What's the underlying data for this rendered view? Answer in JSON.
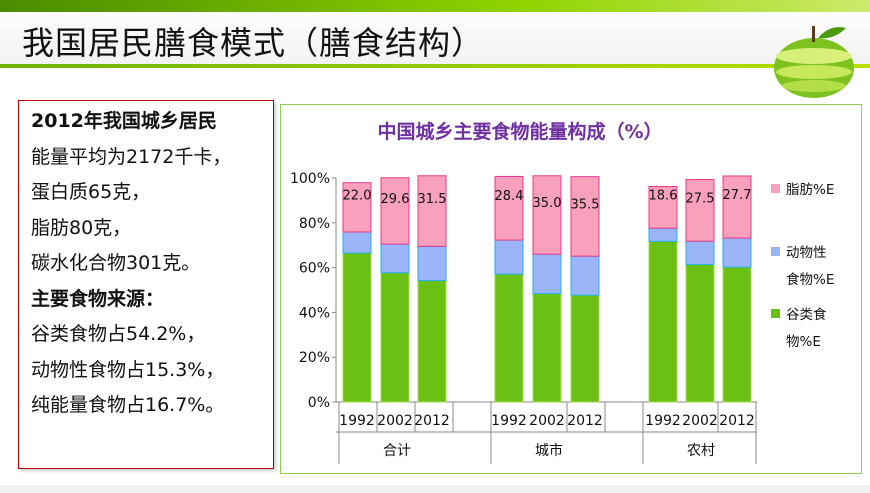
{
  "header": {
    "title": "我国居民膳食模式（膳食结构）"
  },
  "left_panel": {
    "lines": [
      {
        "text": "2012年我国城乡居民",
        "bold": true
      },
      {
        "text": "能量平均为2172千卡，",
        "bold": false
      },
      {
        "text": "蛋白质65克，",
        "bold": false
      },
      {
        "text": "脂肪80克，",
        "bold": false
      },
      {
        "text": "碳水化合物301克。",
        "bold": false
      },
      {
        "text": "主要食物来源：",
        "bold": true
      },
      {
        "text": "谷类食物占54.2%，",
        "bold": false
      },
      {
        "text": "动物性食物占15.3%，",
        "bold": false
      },
      {
        "text": "纯能量食物占16.7%。",
        "bold": false
      }
    ]
  },
  "chart_data": {
    "type": "bar",
    "stacked": true,
    "title": "中国城乡主要食物能量构成（%）",
    "groups": [
      "合计",
      "城市",
      "农村"
    ],
    "categories": [
      "1992",
      "2002",
      "2012",
      "1992",
      "2002",
      "2012",
      "1992",
      "2002",
      "2012"
    ],
    "ylim": [
      0,
      100
    ],
    "yticks": [
      "0%",
      "20%",
      "40%",
      "60%",
      "80%",
      "100%"
    ],
    "legend_position": "right",
    "series": [
      {
        "name": "谷类食物%E",
        "legend_lines": [
          "谷类食",
          "物%E"
        ],
        "color": "#6cc014",
        "values": [
          66.5,
          57.7,
          54.2,
          57.1,
          48.4,
          47.7,
          71.7,
          61.4,
          60.2
        ],
        "labeled": false
      },
      {
        "name": "动物性食物%E",
        "legend_lines": [
          "动物性",
          "食物%E"
        ],
        "color": "#9cb4f8",
        "values": [
          9.4,
          12.8,
          15.3,
          15.2,
          17.6,
          17.4,
          5.9,
          10.4,
          13.0
        ],
        "labeled": false
      },
      {
        "name": "脂肪%E",
        "legend_lines": [
          "脂肪%E"
        ],
        "color": "#f8a0bc",
        "values": [
          22.0,
          29.6,
          31.5,
          28.4,
          35.0,
          35.5,
          18.6,
          27.5,
          27.7
        ],
        "labeled": true
      }
    ]
  }
}
